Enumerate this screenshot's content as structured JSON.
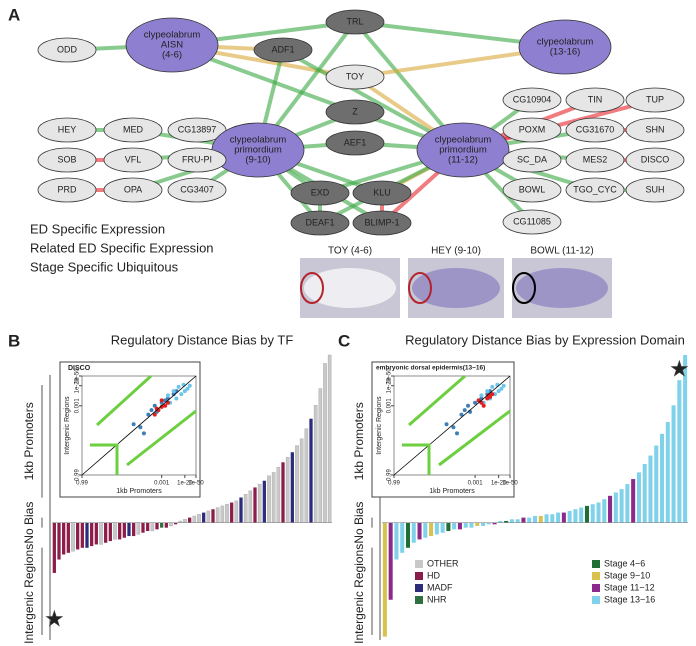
{
  "panel_labels": [
    "A",
    "B",
    "C"
  ],
  "network": {
    "nodes": [
      {
        "label": [
          "ODD"
        ]
      },
      {
        "label": [
          "clypeolabrum",
          "AISN",
          "(4-6)"
        ]
      },
      {
        "label": [
          "TRL"
        ]
      },
      {
        "label": [
          "ADF1"
        ]
      },
      {
        "label": [
          "TOY"
        ]
      },
      {
        "label": [
          "clypeolabrum",
          "(13-16)"
        ]
      },
      {
        "label": [
          "Z"
        ]
      },
      {
        "label": [
          "AEF1"
        ]
      },
      {
        "label": [
          "HEY"
        ]
      },
      {
        "label": [
          "MED"
        ]
      },
      {
        "label": [
          "CG13897"
        ]
      },
      {
        "label": [
          "clypeolabrum",
          "primordium",
          "(9-10)"
        ]
      },
      {
        "label": [
          "clypeolabrum",
          "primordium",
          "(11-12)"
        ]
      },
      {
        "label": [
          "CG10904"
        ]
      },
      {
        "label": [
          "TIN"
        ]
      },
      {
        "label": [
          "TUP"
        ]
      },
      {
        "label": [
          "POXM"
        ]
      },
      {
        "label": [
          "CG31670"
        ]
      },
      {
        "label": [
          "SHN"
        ]
      },
      {
        "label": [
          "SOB"
        ]
      },
      {
        "label": [
          "VFL"
        ]
      },
      {
        "label": [
          "FRU-PI"
        ]
      },
      {
        "label": [
          "SC_DA"
        ]
      },
      {
        "label": [
          "MES2"
        ]
      },
      {
        "label": [
          "DISCO"
        ]
      },
      {
        "label": [
          "PRD"
        ]
      },
      {
        "label": [
          "OPA"
        ]
      },
      {
        "label": [
          "CG3407"
        ]
      },
      {
        "label": [
          "EXD"
        ]
      },
      {
        "label": [
          "KLU"
        ]
      },
      {
        "label": [
          "BOWL"
        ]
      },
      {
        "label": [
          "TGO_CYC"
        ]
      },
      {
        "label": [
          "SUH"
        ]
      },
      {
        "label": [
          "DEAF1"
        ]
      },
      {
        "label": [
          "BLIMP-1"
        ]
      },
      {
        "label": [
          "CG11085"
        ]
      }
    ],
    "legend": [
      {
        "name": "ED Specific Expression",
        "color": "#e8242c"
      },
      {
        "name": "Related ED Specific Expression",
        "color": "#d9a83a"
      },
      {
        "name": "Stage Specific Ubiquitous",
        "color": "#3aa845"
      }
    ]
  },
  "images": [
    {
      "caption": "TOY (4-6)"
    },
    {
      "caption": "HEY (9-10)"
    },
    {
      "caption": "BOWL (11-12)"
    }
  ],
  "chart_data": [
    {
      "type": "bar",
      "title": "Regulatory Distance Bias by TF",
      "y_labels": [
        "1kb Promoters",
        "No Bias",
        "Intergenic Regions"
      ],
      "ylim": [
        -7,
        10
      ],
      "values": [
        -3.0,
        -2.2,
        -1.9,
        -1.8,
        -1.7,
        -1.6,
        -1.5,
        -1.5,
        -1.4,
        -1.3,
        -1.3,
        -1.2,
        -1.1,
        -1.0,
        -1.0,
        -0.9,
        -0.8,
        -0.8,
        -0.7,
        -0.6,
        -0.5,
        -0.5,
        -0.4,
        -0.3,
        -0.3,
        -0.2,
        -0.1,
        0.1,
        0.2,
        0.3,
        0.4,
        0.5,
        0.6,
        0.7,
        0.8,
        0.9,
        1.0,
        1.1,
        1.2,
        1.3,
        1.5,
        1.7,
        1.9,
        2.1,
        2.3,
        2.5,
        2.8,
        3.0,
        3.3,
        3.6,
        3.9,
        4.2,
        4.6,
        5.0,
        5.6,
        6.2,
        7.0,
        8.0,
        9.5,
        10.0
      ],
      "groups": [
        "HD",
        "HD",
        "HD",
        "HD",
        "OTHER",
        "HD",
        "HD",
        "MADF",
        "HD",
        "HD",
        "OTHER",
        "HD",
        "HD",
        "OTHER",
        "HD",
        "HD",
        "MADF",
        "HD",
        "OTHER",
        "HD",
        "HD",
        "OTHER",
        "HD",
        "NHR",
        "HD",
        "OTHER",
        "HD",
        "OTHER",
        "OTHER",
        "HD",
        "OTHER",
        "OTHER",
        "MADF",
        "OTHER",
        "HD",
        "OTHER",
        "OTHER",
        "OTHER",
        "HD",
        "OTHER",
        "MADF",
        "OTHER",
        "OTHER",
        "HD",
        "OTHER",
        "MADF",
        "OTHER",
        "OTHER",
        "OTHER",
        "HD",
        "OTHER",
        "MADF",
        "OTHER",
        "OTHER",
        "OTHER",
        "MADF",
        "OTHER",
        "OTHER",
        "OTHER",
        "OTHER"
      ],
      "legend": [
        {
          "name": "OTHER",
          "color": "#c8c8c8"
        },
        {
          "name": "HD",
          "color": "#8c1d4a"
        },
        {
          "name": "MADF",
          "color": "#2c2c7c"
        },
        {
          "name": "NHR",
          "color": "#2f6e3d"
        }
      ],
      "inset": {
        "type": "scatter",
        "title": "DISCO",
        "xlabel": "1kb Promoters",
        "ylabel": "Intergenic Regions",
        "xlim": [
          0.99,
          1e-50
        ],
        "ylim": [
          0.99,
          1e-50
        ],
        "xticks": [
          0.99,
          0.001,
          1e-20,
          1e-50
        ],
        "yticks": [
          0.99,
          0.001,
          1e-20,
          1e-50
        ],
        "series": [
          {
            "color": "#3f7fb5",
            "x": [
              0.5,
              0.1,
              0.01,
              0.001,
              1e-05,
              0.3,
              0.05,
              0.0001,
              1e-08,
              1e-10,
              0.2,
              0.02
            ],
            "y": [
              0.3,
              0.05,
              0.02,
              0.0001,
              1e-06,
              0.4,
              0.01,
              1e-05,
              1e-09,
              1e-12,
              0.6,
              0.001
            ]
          },
          {
            "color": "#6cc5ea",
            "x": [
              1e-06,
              1e-10,
              1e-15,
              1e-20,
              1e-25,
              1e-08,
              1e-12,
              1e-30,
              1e-05,
              1e-18
            ],
            "y": [
              0.0001,
              1e-06,
              1e-09,
              1e-12,
              1e-15,
              1e-12,
              1e-18,
              1e-20,
              1e-08,
              1e-22
            ]
          },
          {
            "color": "#e02020",
            "x": [
              0.01,
              0.001,
              0.0001,
              0.005,
              0.001,
              0.02,
              1e-05
            ],
            "y": [
              0.005,
              0.002,
              0.001,
              0.01,
              1e-05,
              0.05,
              0.0001
            ]
          }
        ]
      }
    },
    {
      "type": "bar",
      "title": "Regulatory Distance Bias by Expression Domain",
      "y_labels": [
        "1kb Promoters",
        "No Bias",
        "Intergenic Regions"
      ],
      "ylim": [
        -7,
        10
      ],
      "values": [
        -6.8,
        -4.6,
        -2.2,
        -1.8,
        -1.5,
        -1.2,
        -1.0,
        -0.9,
        -0.8,
        -0.7,
        -0.6,
        -0.5,
        -0.4,
        -0.4,
        -0.3,
        -0.3,
        -0.2,
        -0.2,
        -0.1,
        -0.1,
        0.1,
        0.1,
        0.2,
        0.2,
        0.3,
        0.3,
        0.4,
        0.4,
        0.5,
        0.5,
        0.6,
        0.6,
        0.7,
        0.8,
        0.9,
        1.0,
        1.1,
        1.2,
        1.4,
        1.6,
        1.8,
        2.0,
        2.3,
        2.6,
        3.0,
        3.5,
        4.0,
        4.6,
        5.3,
        6.0,
        7.0,
        8.5,
        10.0
      ],
      "groups": [
        "Stage 9−10",
        "Stage 11−12",
        "Stage 13−16",
        "Stage 13−16",
        "Stage 4−6",
        "Stage 13−16",
        "Stage 11−12",
        "Stage 13−16",
        "Stage 9−10",
        "Stage 13−16",
        "Stage 13−16",
        "Stage 4−6",
        "Stage 13−16",
        "Stage 11−12",
        "Stage 13−16",
        "Stage 13−16",
        "Stage 9−10",
        "Stage 13−16",
        "Stage 13−16",
        "Stage 11−12",
        "Stage 13−16",
        "Stage 4−6",
        "Stage 13−16",
        "Stage 13−16",
        "Stage 11−12",
        "Stage 13−16",
        "Stage 13−16",
        "Stage 9−10",
        "Stage 13−16",
        "Stage 13−16",
        "Stage 13−16",
        "Stage 11−12",
        "Stage 13−16",
        "Stage 13−16",
        "Stage 13−16",
        "Stage 4−6",
        "Stage 13−16",
        "Stage 13−16",
        "Stage 13−16",
        "Stage 11−12",
        "Stage 13−16",
        "Stage 13−16",
        "Stage 13−16",
        "Stage 11−12",
        "Stage 13−16",
        "Stage 13−16",
        "Stage 13−16",
        "Stage 13−16",
        "Stage 13−16",
        "Stage 13−16",
        "Stage 13−16",
        "Stage 13−16",
        "Stage 13−16"
      ],
      "legend": [
        {
          "name": "Stage 4−6",
          "color": "#1f6e35"
        },
        {
          "name": "Stage 9−10",
          "color": "#d8c24e"
        },
        {
          "name": "Stage 11−12",
          "color": "#8c2a8c"
        },
        {
          "name": "Stage 13−16",
          "color": "#80d2ea"
        }
      ],
      "inset": {
        "type": "scatter",
        "title": "embryonic dorsal epidermis(13−16)",
        "xlabel": "1kb Promoters",
        "ylabel": "Intergenic Regions",
        "xlim": [
          0.99,
          1e-50
        ],
        "ylim": [
          0.99,
          1e-50
        ],
        "xticks": [
          0.99,
          0.001,
          1e-20,
          1e-50
        ],
        "yticks": [
          0.99,
          0.001,
          1e-20,
          1e-50
        ],
        "series": [
          {
            "color": "#3f7fb5",
            "x": [
              0.5,
              0.1,
              0.01,
              0.001,
              1e-05,
              0.3,
              0.05,
              0.0001,
              1e-08,
              1e-10,
              0.2,
              0.02
            ],
            "y": [
              0.3,
              0.05,
              0.02,
              0.0001,
              1e-06,
              0.4,
              0.01,
              1e-05,
              1e-09,
              1e-12,
              0.6,
              0.001
            ]
          },
          {
            "color": "#6cc5ea",
            "x": [
              1e-06,
              1e-10,
              1e-15,
              1e-20,
              1e-25,
              1e-08,
              1e-12,
              1e-30,
              1e-05,
              1e-18
            ],
            "y": [
              0.0001,
              1e-06,
              1e-09,
              1e-12,
              1e-15,
              1e-12,
              1e-18,
              1e-20,
              1e-08,
              1e-22
            ]
          },
          {
            "color": "#e02020",
            "x": [
              1e-05,
              1e-08,
              1e-10,
              1e-06,
              1e-12,
              0.0001,
              1e-09
            ],
            "y": [
              0.0001,
              1e-06,
              1e-07,
              0.001,
              1e-09,
              1e-05,
              1e-08
            ]
          }
        ]
      }
    }
  ]
}
